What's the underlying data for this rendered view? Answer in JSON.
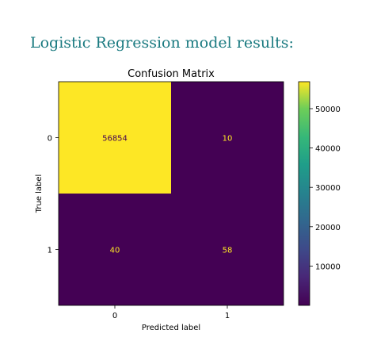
{
  "page": {
    "heading": "Logistic Regression model results:"
  },
  "chart_data": {
    "type": "heatmap",
    "title": "Confusion Matrix",
    "xlabel": "Predicted label",
    "ylabel": "True label",
    "x_categories": [
      "0",
      "1"
    ],
    "y_categories": [
      "0",
      "1"
    ],
    "matrix": [
      [
        56854,
        10
      ],
      [
        40,
        58
      ]
    ],
    "colormap": "viridis",
    "colorbar": {
      "range": [
        0,
        56854
      ],
      "ticks": [
        "10000",
        "20000",
        "30000",
        "40000",
        "50000"
      ]
    },
    "text_colors": {
      "on_light": "#440154",
      "on_dark": "#fde725"
    },
    "cell_colors": {
      "high": "#fde725",
      "low": "#440154"
    }
  }
}
